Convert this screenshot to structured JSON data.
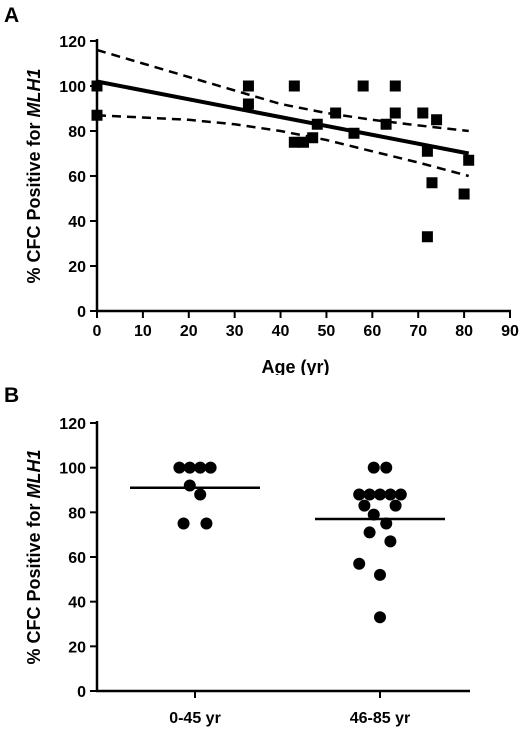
{
  "chart_data": [
    {
      "panel": "A",
      "type": "scatter",
      "xlabel": "Age (yr)",
      "ylabel_prefix": "% CFC Positive for ",
      "ylabel_gene": "MLH1",
      "xlim": [
        0,
        90
      ],
      "ylim": [
        0,
        120
      ],
      "xticks": [
        0,
        10,
        20,
        30,
        40,
        50,
        60,
        70,
        80,
        90
      ],
      "yticks": [
        0,
        20,
        40,
        60,
        80,
        100,
        120
      ],
      "marker": "square",
      "points": [
        {
          "x": 0,
          "y": 100
        },
        {
          "x": 0,
          "y": 87
        },
        {
          "x": 33,
          "y": 100
        },
        {
          "x": 33,
          "y": 92
        },
        {
          "x": 43,
          "y": 100
        },
        {
          "x": 43,
          "y": 75
        },
        {
          "x": 45,
          "y": 75
        },
        {
          "x": 47,
          "y": 77
        },
        {
          "x": 48,
          "y": 83
        },
        {
          "x": 52,
          "y": 88
        },
        {
          "x": 56,
          "y": 79
        },
        {
          "x": 58,
          "y": 100
        },
        {
          "x": 63,
          "y": 83
        },
        {
          "x": 65,
          "y": 100
        },
        {
          "x": 65,
          "y": 88
        },
        {
          "x": 71,
          "y": 88
        },
        {
          "x": 72,
          "y": 71
        },
        {
          "x": 72,
          "y": 33
        },
        {
          "x": 73,
          "y": 57
        },
        {
          "x": 74,
          "y": 85
        },
        {
          "x": 80,
          "y": 52
        },
        {
          "x": 81,
          "y": 67
        }
      ],
      "regression": {
        "x": [
          0,
          81
        ],
        "y": [
          102,
          70
        ]
      },
      "ci_upper": [
        [
          0,
          116
        ],
        [
          10,
          110
        ],
        [
          20,
          104
        ],
        [
          30,
          98
        ],
        [
          40,
          92
        ],
        [
          50,
          88
        ],
        [
          60,
          85
        ],
        [
          70,
          82.5
        ],
        [
          81,
          80
        ]
      ],
      "ci_lower": [
        [
          0,
          87
        ],
        [
          10,
          86
        ],
        [
          20,
          85
        ],
        [
          30,
          83
        ],
        [
          40,
          80
        ],
        [
          50,
          76
        ],
        [
          60,
          71
        ],
        [
          70,
          66
        ],
        [
          81,
          60
        ]
      ]
    },
    {
      "panel": "B",
      "type": "scatter",
      "ylabel_prefix": "% CFC Positive for ",
      "ylabel_gene": "MLH1",
      "ylim": [
        0,
        120
      ],
      "yticks": [
        0,
        20,
        40,
        60,
        80,
        100,
        120
      ],
      "categories": [
        "0-45 yr",
        "46-85 yr"
      ],
      "marker": "circle",
      "groups": [
        {
          "category": "0-45 yr",
          "mean": 91,
          "points": [
            {
              "dx": -0.3,
              "y": 100
            },
            {
              "dx": -0.1,
              "y": 100
            },
            {
              "dx": 0.1,
              "y": 100
            },
            {
              "dx": 0.3,
              "y": 100
            },
            {
              "dx": -0.1,
              "y": 92
            },
            {
              "dx": 0.1,
              "y": 88
            },
            {
              "dx": -0.22,
              "y": 75
            },
            {
              "dx": 0.22,
              "y": 75
            }
          ]
        },
        {
          "category": "46-85 yr",
          "mean": 77,
          "points": [
            {
              "dx": -0.12,
              "y": 100
            },
            {
              "dx": 0.12,
              "y": 100
            },
            {
              "dx": -0.4,
              "y": 88
            },
            {
              "dx": -0.2,
              "y": 88
            },
            {
              "dx": 0.0,
              "y": 88
            },
            {
              "dx": 0.2,
              "y": 88
            },
            {
              "dx": 0.4,
              "y": 88
            },
            {
              "dx": -0.3,
              "y": 83
            },
            {
              "dx": 0.3,
              "y": 83
            },
            {
              "dx": -0.12,
              "y": 79
            },
            {
              "dx": 0.12,
              "y": 75
            },
            {
              "dx": -0.2,
              "y": 71
            },
            {
              "dx": 0.2,
              "y": 67
            },
            {
              "dx": -0.4,
              "y": 57
            },
            {
              "dx": 0.0,
              "y": 52
            },
            {
              "dx": 0.0,
              "y": 33
            }
          ]
        }
      ]
    }
  ]
}
